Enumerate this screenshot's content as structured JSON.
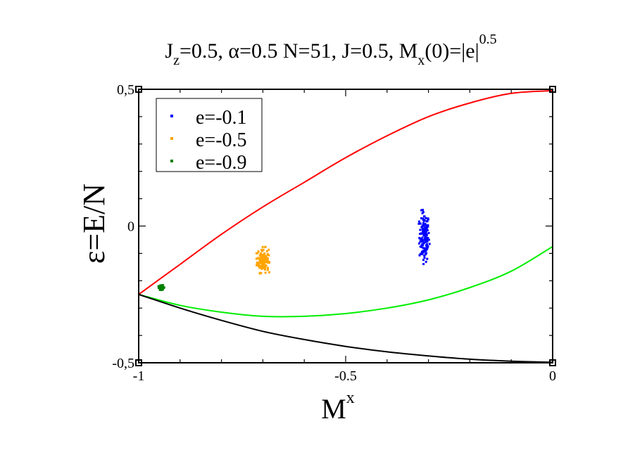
{
  "chart_data": {
    "type": "scatter",
    "title": {
      "parts": [
        {
          "text": "J",
          "shift": "base"
        },
        {
          "text": "z",
          "shift": "sub"
        },
        {
          "text": "=0.5, ",
          "shift": "base"
        },
        {
          "text": "α",
          "shift": "base"
        },
        {
          "text": "=0.5 N=51, J=0.5, M",
          "shift": "base"
        },
        {
          "text": "x",
          "shift": "sub"
        },
        {
          "text": "(0)=|e|",
          "shift": "base"
        },
        {
          "text": "0.5",
          "shift": "super"
        }
      ]
    },
    "xlabel": {
      "main": "M",
      "sup": "x"
    },
    "ylabel": "ε=E/N",
    "xlim": [
      -1,
      0
    ],
    "ylim": [
      -0.5,
      0.5
    ],
    "xticks": [
      {
        "value": -1,
        "label": "-1"
      },
      {
        "value": -0.5,
        "label": "-0.5"
      },
      {
        "value": 0,
        "label": "0"
      }
    ],
    "yticks": [
      {
        "value": -0.5,
        "label": "-0,5"
      },
      {
        "value": 0,
        "label": "0"
      },
      {
        "value": 0.5,
        "label": "0,5"
      }
    ],
    "x_minor_step": 0.1,
    "y_minor_step": 0.1,
    "grid": false,
    "legend_position": "top-left",
    "series": [
      {
        "name": "e=-0.1",
        "kind": "scatter",
        "color": "#0000ff",
        "center": [
          -0.31,
          -0.04
        ],
        "spread": [
          0.006,
          0.045
        ],
        "count": 140
      },
      {
        "name": "e=-0.5",
        "kind": "scatter",
        "color": "#ffa500",
        "center": [
          -0.7,
          -0.125
        ],
        "spread": [
          0.007,
          0.022
        ],
        "count": 130
      },
      {
        "name": "e=-0.9",
        "kind": "scatter",
        "color": "#008000",
        "center": [
          -0.945,
          -0.225
        ],
        "spread": [
          0.004,
          0.004
        ],
        "count": 40
      },
      {
        "kind": "line",
        "color": "#ff0000",
        "x": [
          -1,
          -0.9,
          -0.8,
          -0.7,
          -0.6,
          -0.5,
          -0.4,
          -0.3,
          -0.2,
          -0.1,
          0
        ],
        "y": [
          -0.25,
          -0.14,
          -0.03,
          0.07,
          0.16,
          0.25,
          0.33,
          0.4,
          0.45,
          0.485,
          0.495
        ]
      },
      {
        "kind": "line",
        "color": "#00ee00",
        "x": [
          -1,
          -0.9,
          -0.8,
          -0.7,
          -0.6,
          -0.5,
          -0.4,
          -0.3,
          -0.2,
          -0.1,
          0
        ],
        "y": [
          -0.25,
          -0.29,
          -0.315,
          -0.33,
          -0.33,
          -0.32,
          -0.3,
          -0.27,
          -0.225,
          -0.165,
          -0.075
        ]
      },
      {
        "kind": "line",
        "color": "#000000",
        "x": [
          -1,
          -0.9,
          -0.8,
          -0.7,
          -0.6,
          -0.5,
          -0.4,
          -0.3,
          -0.2,
          -0.1,
          0
        ],
        "y": [
          -0.25,
          -0.3,
          -0.345,
          -0.385,
          -0.415,
          -0.44,
          -0.46,
          -0.475,
          -0.487,
          -0.494,
          -0.498
        ]
      }
    ]
  }
}
